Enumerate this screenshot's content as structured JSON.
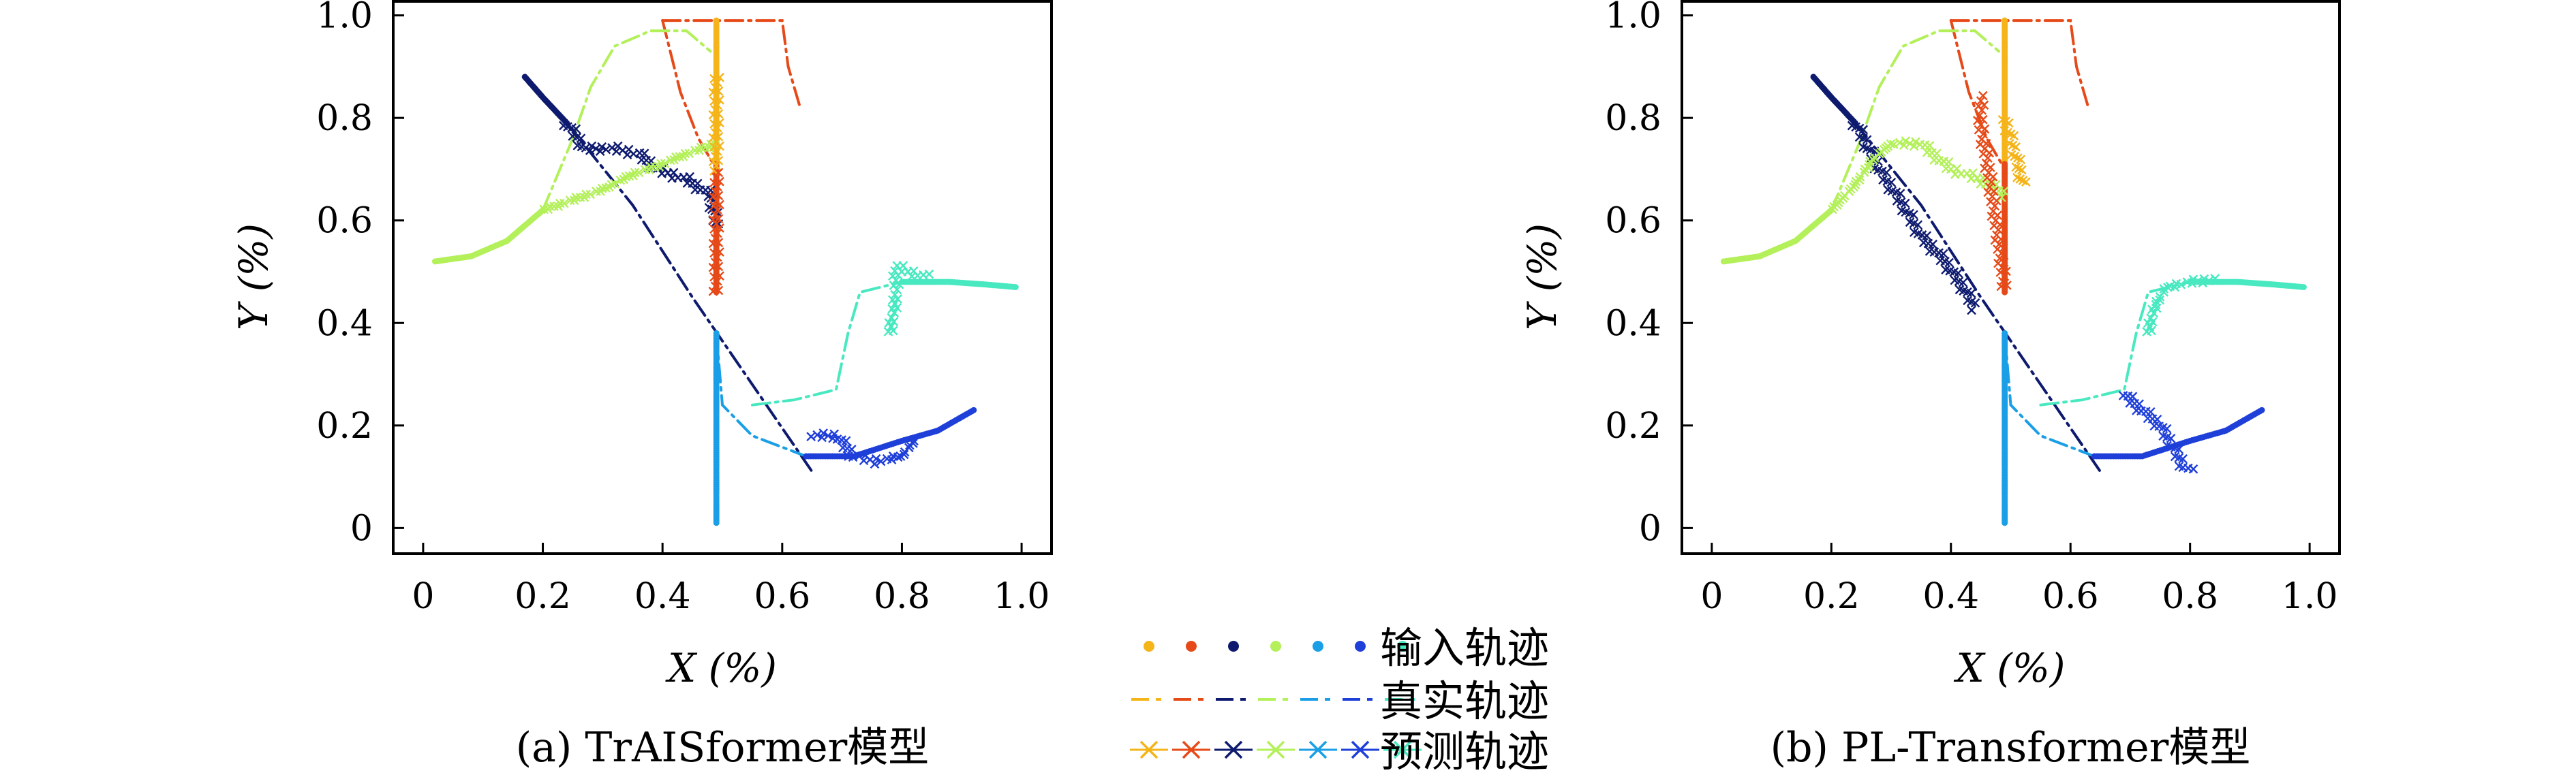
{
  "figure": {
    "legend": {
      "items": [
        {
          "label": "输入轨迹",
          "style": "dots"
        },
        {
          "label": "真实轨迹",
          "style": "dashdot"
        },
        {
          "label": "预测轨迹",
          "style": "crosses"
        }
      ],
      "series_colors": [
        "#f4b41a",
        "#e64a19",
        "#0d1a6e",
        "#b3f05a",
        "#1a9fe6",
        "#1f3fd9",
        "#48e8c0"
      ]
    }
  },
  "chart_data": [
    {
      "type": "line",
      "caption": "(a) TrAISformer模型",
      "xlabel": "X (%)",
      "ylabel": "Y (%)",
      "xlim": [
        -0.05,
        1.05
      ],
      "ylim": [
        -0.05,
        1.03
      ],
      "xticks": [
        "0",
        "0.2",
        "0.4",
        "0.6",
        "0.8",
        "1.0"
      ],
      "yticks": [
        "0",
        "0.2",
        "0.4",
        "0.6",
        "0.8",
        "1.0"
      ],
      "grid": false,
      "input_tracks": [
        {
          "color": "#f4b41a",
          "points": [
            [
              0.49,
              0.99
            ],
            [
              0.49,
              0.9
            ],
            [
              0.49,
              0.8
            ],
            [
              0.49,
              0.7
            ]
          ]
        },
        {
          "color": "#e64a19",
          "points": [
            [
              0.49,
              0.71
            ],
            [
              0.49,
              0.62
            ],
            [
              0.49,
              0.55
            ],
            [
              0.49,
              0.46
            ]
          ]
        },
        {
          "color": "#0d1a6e",
          "points": [
            [
              0.17,
              0.88
            ],
            [
              0.2,
              0.84
            ],
            [
              0.24,
              0.79
            ]
          ]
        },
        {
          "color": "#b3f05a",
          "points": [
            [
              0.02,
              0.52
            ],
            [
              0.08,
              0.53
            ],
            [
              0.14,
              0.56
            ],
            [
              0.2,
              0.62
            ]
          ]
        },
        {
          "color": "#1a9fe6",
          "points": [
            [
              0.49,
              0.38
            ],
            [
              0.49,
              0.25
            ],
            [
              0.49,
              0.12
            ],
            [
              0.49,
              0.01
            ]
          ]
        },
        {
          "color": "#1f3fd9",
          "points": [
            [
              0.64,
              0.14
            ],
            [
              0.72,
              0.14
            ],
            [
              0.8,
              0.17
            ],
            [
              0.86,
              0.19
            ],
            [
              0.92,
              0.23
            ]
          ]
        },
        {
          "color": "#48e8c0",
          "points": [
            [
              0.8,
              0.48
            ],
            [
              0.88,
              0.48
            ],
            [
              0.94,
              0.475
            ],
            [
              0.99,
              0.47
            ]
          ]
        }
      ],
      "true_tracks": [
        {
          "color": "#f4b41a",
          "points": [
            [
              0.49,
              0.99
            ],
            [
              0.49,
              0.88
            ],
            [
              0.49,
              0.77
            ],
            [
              0.49,
              0.7
            ]
          ]
        },
        {
          "color": "#e64a19",
          "points": [
            [
              0.4,
              0.99
            ],
            [
              0.5,
              0.99
            ],
            [
              0.6,
              0.99
            ],
            [
              0.61,
              0.9
            ],
            [
              0.63,
              0.82
            ]
          ]
        },
        {
          "color": "#e64a19",
          "points": [
            [
              0.4,
              0.99
            ],
            [
              0.43,
              0.85
            ],
            [
              0.46,
              0.76
            ],
            [
              0.49,
              0.7
            ]
          ]
        },
        {
          "color": "#0d1a6e",
          "points": [
            [
              0.24,
              0.79
            ],
            [
              0.35,
              0.63
            ],
            [
              0.45,
              0.45
            ],
            [
              0.55,
              0.28
            ],
            [
              0.65,
              0.11
            ]
          ]
        },
        {
          "color": "#b3f05a",
          "points": [
            [
              0.2,
              0.62
            ],
            [
              0.25,
              0.76
            ],
            [
              0.28,
              0.86
            ],
            [
              0.32,
              0.94
            ],
            [
              0.38,
              0.97
            ],
            [
              0.44,
              0.97
            ],
            [
              0.48,
              0.93
            ]
          ]
        },
        {
          "color": "#1a9fe6",
          "points": [
            [
              0.49,
              0.38
            ],
            [
              0.5,
              0.24
            ],
            [
              0.55,
              0.18
            ],
            [
              0.64,
              0.14
            ]
          ]
        },
        {
          "color": "#48e8c0",
          "points": [
            [
              0.55,
              0.24
            ],
            [
              0.62,
              0.25
            ],
            [
              0.69,
              0.27
            ],
            [
              0.71,
              0.38
            ],
            [
              0.73,
              0.46
            ],
            [
              0.8,
              0.48
            ]
          ]
        }
      ],
      "predicted_tracks": [
        {
          "color": "#0d1a6e",
          "points": [
            [
              0.24,
              0.79
            ],
            [
              0.27,
              0.74
            ],
            [
              0.32,
              0.74
            ],
            [
              0.36,
              0.73
            ],
            [
              0.39,
              0.7
            ],
            [
              0.44,
              0.68
            ],
            [
              0.48,
              0.65
            ],
            [
              0.49,
              0.59
            ]
          ]
        },
        {
          "color": "#b3f05a",
          "points": [
            [
              0.2,
              0.62
            ],
            [
              0.25,
              0.64
            ],
            [
              0.3,
              0.66
            ],
            [
              0.35,
              0.69
            ],
            [
              0.4,
              0.71
            ],
            [
              0.44,
              0.73
            ],
            [
              0.49,
              0.75
            ]
          ]
        },
        {
          "color": "#f4b41a",
          "points": [
            [
              0.49,
              0.7
            ],
            [
              0.49,
              0.76
            ],
            [
              0.49,
              0.83
            ],
            [
              0.49,
              0.88
            ]
          ]
        },
        {
          "color": "#e64a19",
          "points": [
            [
              0.49,
              0.46
            ],
            [
              0.49,
              0.52
            ],
            [
              0.49,
              0.6
            ],
            [
              0.49,
              0.69
            ]
          ]
        },
        {
          "color": "#1f3fd9",
          "points": [
            [
              0.65,
              0.18
            ],
            [
              0.69,
              0.18
            ],
            [
              0.72,
              0.14
            ],
            [
              0.76,
              0.13
            ],
            [
              0.8,
              0.14
            ],
            [
              0.82,
              0.17
            ]
          ]
        },
        {
          "color": "#48e8c0",
          "points": [
            [
              0.78,
              0.38
            ],
            [
              0.79,
              0.45
            ],
            [
              0.79,
              0.51
            ],
            [
              0.81,
              0.5
            ],
            [
              0.84,
              0.49
            ]
          ]
        }
      ]
    },
    {
      "type": "line",
      "caption": "(b) PL-Transformer模型",
      "xlabel": "X (%)",
      "ylabel": "Y (%)",
      "xlim": [
        -0.05,
        1.05
      ],
      "ylim": [
        -0.05,
        1.03
      ],
      "xticks": [
        "0",
        "0.2",
        "0.4",
        "0.6",
        "0.8",
        "1.0"
      ],
      "yticks": [
        "0",
        "0.2",
        "0.4",
        "0.6",
        "0.8",
        "1.0"
      ],
      "grid": false,
      "input_tracks": [
        {
          "color": "#f4b41a",
          "points": [
            [
              0.49,
              0.99
            ],
            [
              0.49,
              0.9
            ],
            [
              0.49,
              0.8
            ],
            [
              0.49,
              0.7
            ]
          ]
        },
        {
          "color": "#e64a19",
          "points": [
            [
              0.49,
              0.71
            ],
            [
              0.49,
              0.62
            ],
            [
              0.49,
              0.55
            ],
            [
              0.49,
              0.46
            ]
          ]
        },
        {
          "color": "#0d1a6e",
          "points": [
            [
              0.17,
              0.88
            ],
            [
              0.2,
              0.84
            ],
            [
              0.24,
              0.79
            ]
          ]
        },
        {
          "color": "#b3f05a",
          "points": [
            [
              0.02,
              0.52
            ],
            [
              0.08,
              0.53
            ],
            [
              0.14,
              0.56
            ],
            [
              0.2,
              0.62
            ]
          ]
        },
        {
          "color": "#1a9fe6",
          "points": [
            [
              0.49,
              0.38
            ],
            [
              0.49,
              0.25
            ],
            [
              0.49,
              0.12
            ],
            [
              0.49,
              0.01
            ]
          ]
        },
        {
          "color": "#1f3fd9",
          "points": [
            [
              0.64,
              0.14
            ],
            [
              0.72,
              0.14
            ],
            [
              0.8,
              0.17
            ],
            [
              0.86,
              0.19
            ],
            [
              0.92,
              0.23
            ]
          ]
        },
        {
          "color": "#48e8c0",
          "points": [
            [
              0.8,
              0.48
            ],
            [
              0.88,
              0.48
            ],
            [
              0.94,
              0.475
            ],
            [
              0.99,
              0.47
            ]
          ]
        }
      ],
      "true_tracks": [
        {
          "color": "#f4b41a",
          "points": [
            [
              0.49,
              0.99
            ],
            [
              0.49,
              0.88
            ],
            [
              0.49,
              0.77
            ],
            [
              0.49,
              0.7
            ]
          ]
        },
        {
          "color": "#e64a19",
          "points": [
            [
              0.4,
              0.99
            ],
            [
              0.5,
              0.99
            ],
            [
              0.6,
              0.99
            ],
            [
              0.61,
              0.9
            ],
            [
              0.63,
              0.82
            ]
          ]
        },
        {
          "color": "#e64a19",
          "points": [
            [
              0.4,
              0.99
            ],
            [
              0.43,
              0.85
            ],
            [
              0.46,
              0.76
            ],
            [
              0.49,
              0.7
            ]
          ]
        },
        {
          "color": "#0d1a6e",
          "points": [
            [
              0.24,
              0.79
            ],
            [
              0.35,
              0.63
            ],
            [
              0.45,
              0.45
            ],
            [
              0.55,
              0.28
            ],
            [
              0.65,
              0.11
            ]
          ]
        },
        {
          "color": "#b3f05a",
          "points": [
            [
              0.2,
              0.62
            ],
            [
              0.25,
              0.76
            ],
            [
              0.28,
              0.86
            ],
            [
              0.32,
              0.94
            ],
            [
              0.38,
              0.97
            ],
            [
              0.44,
              0.97
            ],
            [
              0.48,
              0.93
            ]
          ]
        },
        {
          "color": "#1a9fe6",
          "points": [
            [
              0.49,
              0.38
            ],
            [
              0.5,
              0.24
            ],
            [
              0.55,
              0.18
            ],
            [
              0.64,
              0.14
            ]
          ]
        },
        {
          "color": "#48e8c0",
          "points": [
            [
              0.55,
              0.24
            ],
            [
              0.62,
              0.25
            ],
            [
              0.69,
              0.27
            ],
            [
              0.71,
              0.38
            ],
            [
              0.73,
              0.46
            ],
            [
              0.8,
              0.48
            ]
          ]
        }
      ],
      "predicted_tracks": [
        {
          "color": "#0d1a6e",
          "points": [
            [
              0.24,
              0.79
            ],
            [
              0.28,
              0.7
            ],
            [
              0.32,
              0.63
            ],
            [
              0.35,
              0.57
            ],
            [
              0.39,
              0.52
            ],
            [
              0.42,
              0.47
            ],
            [
              0.44,
              0.43
            ]
          ]
        },
        {
          "color": "#b3f05a",
          "points": [
            [
              0.2,
              0.62
            ],
            [
              0.24,
              0.67
            ],
            [
              0.27,
              0.72
            ],
            [
              0.3,
              0.75
            ],
            [
              0.35,
              0.75
            ],
            [
              0.4,
              0.7
            ],
            [
              0.45,
              0.68
            ],
            [
              0.49,
              0.65
            ]
          ]
        },
        {
          "color": "#f4b41a",
          "points": [
            [
              0.49,
              0.8
            ],
            [
              0.5,
              0.76
            ],
            [
              0.51,
              0.72
            ],
            [
              0.52,
              0.67
            ]
          ]
        },
        {
          "color": "#e64a19",
          "points": [
            [
              0.49,
              0.47
            ],
            [
              0.48,
              0.56
            ],
            [
              0.47,
              0.64
            ],
            [
              0.46,
              0.72
            ],
            [
              0.45,
              0.78
            ],
            [
              0.45,
              0.84
            ]
          ]
        },
        {
          "color": "#1f3fd9",
          "points": [
            [
              0.69,
              0.26
            ],
            [
              0.72,
              0.23
            ],
            [
              0.75,
              0.2
            ],
            [
              0.77,
              0.16
            ],
            [
              0.79,
              0.12
            ],
            [
              0.8,
              0.11
            ]
          ]
        },
        {
          "color": "#48e8c0",
          "points": [
            [
              0.73,
              0.38
            ],
            [
              0.74,
              0.43
            ],
            [
              0.76,
              0.47
            ],
            [
              0.8,
              0.48
            ],
            [
              0.84,
              0.485
            ]
          ]
        }
      ]
    }
  ]
}
